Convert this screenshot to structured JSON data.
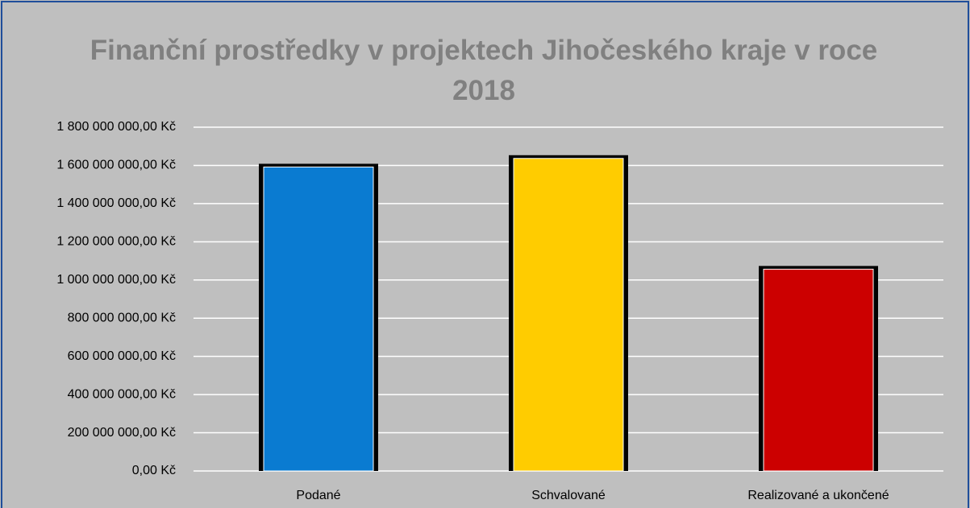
{
  "chart_data": {
    "type": "bar",
    "title": "Finanční prostředky v projektech Jihočeského kraje v roce 2018",
    "categories": [
      "Podané",
      "Schvalované",
      "Realizované a ukončené"
    ],
    "values": [
      1600000000,
      1645000000,
      1065000000
    ],
    "colors": [
      "#0a7bd1",
      "#ffcc00",
      "#cc0000"
    ],
    "ylim": [
      0,
      1800000000
    ],
    "yticks": [
      {
        "value": 0,
        "label": "0,00 Kč"
      },
      {
        "value": 200000000,
        "label": "200 000 000,00 Kč"
      },
      {
        "value": 400000000,
        "label": "400 000 000,00 Kč"
      },
      {
        "value": 600000000,
        "label": "600 000 000,00 Kč"
      },
      {
        "value": 800000000,
        "label": "800 000 000,00 Kč"
      },
      {
        "value": 1000000000,
        "label": "1 000 000 000,00 Kč"
      },
      {
        "value": 1200000000,
        "label": "1 200 000 000,00 Kč"
      },
      {
        "value": 1400000000,
        "label": "1 400 000 000,00 Kč"
      },
      {
        "value": 1600000000,
        "label": "1 600 000 000,00 Kč"
      },
      {
        "value": 1800000000,
        "label": "1 800 000 000,00 Kč"
      }
    ],
    "grid": true
  }
}
